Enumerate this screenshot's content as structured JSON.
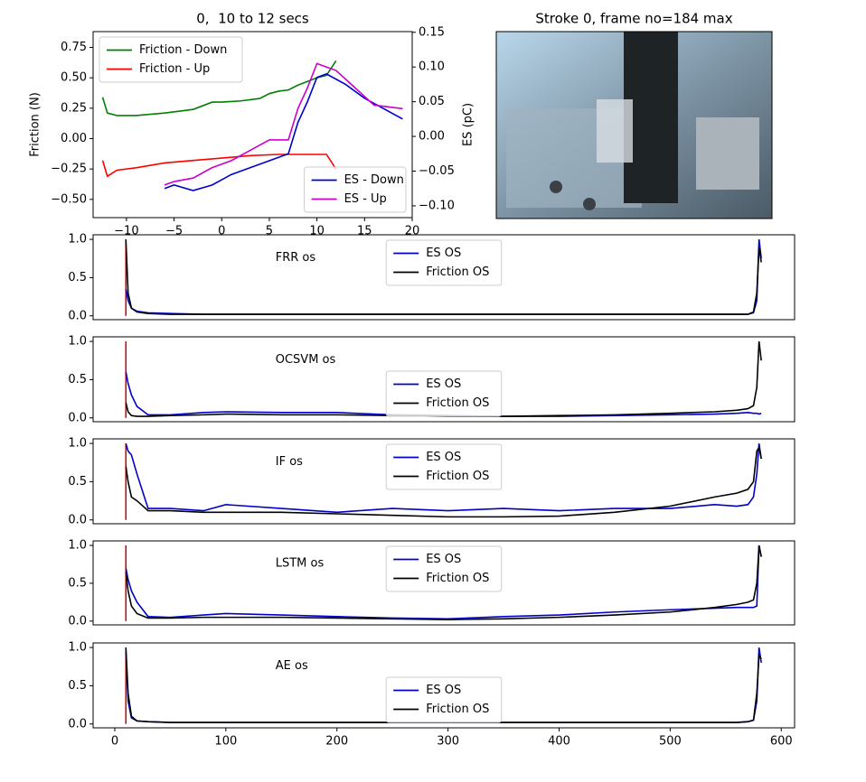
{
  "chart_data": [
    {
      "type": "line",
      "title": "0,  10 to 12 secs",
      "ylabel": "Friction (N)",
      "y2label": "ES (pC)",
      "xlim": [
        -13.5,
        20
      ],
      "xticks": [
        {
          "value": -10,
          "label": "−10"
        },
        {
          "value": -5,
          "label": "−5"
        },
        0,
        5,
        10,
        15,
        20
      ],
      "ylim": [
        -0.65,
        0.88
      ],
      "yticks": [
        {
          "value": -0.5,
          "label": "−0.50"
        },
        {
          "value": -0.25,
          "label": "−0.25"
        },
        {
          "value": 0,
          "label": "0.00"
        },
        0.25,
        {
          "value": 0.5,
          "label": "0.50"
        },
        0.75
      ],
      "y2lim": [
        -0.117,
        0.151
      ],
      "y2ticks": [
        {
          "value": -0.1,
          "label": "−0.10"
        },
        {
          "value": -0.05,
          "label": "−0.05"
        },
        {
          "value": 0,
          "label": "0.00"
        },
        0.05,
        {
          "value": 0.1,
          "label": "0.10"
        },
        0.15
      ],
      "legend": "upper left",
      "y2_legend": "lower right",
      "series": [
        {
          "name": "Friction - Down",
          "color": "#008000",
          "x": [
            -12.5,
            -12,
            -11,
            -9,
            -6,
            -3,
            -1,
            0,
            2,
            4,
            5,
            6,
            7,
            8,
            9,
            10,
            11,
            12
          ],
          "values": [
            0.34,
            0.21,
            0.19,
            0.19,
            0.21,
            0.24,
            0.3,
            0.3,
            0.31,
            0.33,
            0.37,
            0.39,
            0.4,
            0.44,
            0.47,
            0.5,
            0.52,
            0.64
          ]
        },
        {
          "name": "Friction - Up",
          "color": "#ff0000",
          "x": [
            -12.5,
            -12,
            -11,
            -9,
            -6,
            -3,
            0,
            3,
            6,
            9,
            11,
            12
          ],
          "values": [
            -0.18,
            -0.31,
            -0.26,
            -0.24,
            -0.2,
            -0.18,
            -0.16,
            -0.14,
            -0.13,
            -0.13,
            -0.13,
            -0.25
          ]
        },
        {
          "name": "ES - Down",
          "color": "#0000cc",
          "axis": "y2",
          "x": [
            -6,
            -5,
            -3,
            -1,
            1,
            3,
            5,
            6,
            7,
            8,
            9,
            10,
            11,
            13,
            15,
            17,
            19
          ],
          "values": [
            -0.075,
            -0.07,
            -0.078,
            -0.07,
            -0.055,
            -0.045,
            -0.035,
            -0.03,
            -0.025,
            0.02,
            0.05,
            0.085,
            0.09,
            0.075,
            0.055,
            0.04,
            0.025
          ]
        },
        {
          "name": "ES - Up",
          "color": "#cc00cc",
          "axis": "y2",
          "x": [
            -6,
            -5,
            -3,
            -1,
            1,
            3,
            5,
            7,
            8,
            9,
            10,
            11,
            12,
            14,
            16,
            19
          ],
          "values": [
            -0.07,
            -0.065,
            -0.06,
            -0.045,
            -0.035,
            -0.02,
            -0.005,
            -0.005,
            0.04,
            0.07,
            0.105,
            0.1,
            0.095,
            0.07,
            0.045,
            0.04
          ]
        }
      ]
    },
    {
      "type": "image",
      "title": "Stroke 0, frame no=184 max"
    },
    {
      "type": "line",
      "annotation": "FRR os",
      "xlim": [
        -19.5,
        612
      ],
      "ylim": [
        -0.05,
        1.06
      ],
      "yticks": [
        {
          "value": 0,
          "label": "0.0"
        },
        0.5,
        {
          "value": 1,
          "label": "1.0"
        }
      ],
      "legend": "upper center",
      "vline": {
        "x": 10,
        "y": [
          0,
          1
        ],
        "color": "#cc0000"
      },
      "x": [
        10,
        12,
        15,
        20,
        30,
        50,
        80,
        100,
        150,
        200,
        250,
        300,
        350,
        400,
        450,
        500,
        540,
        560,
        570,
        575,
        578,
        580,
        582
      ],
      "series": [
        {
          "name": "ES OS",
          "color": "#0000cc",
          "values": [
            0.35,
            0.2,
            0.1,
            0.06,
            0.04,
            0.03,
            0.02,
            0.02,
            0.02,
            0.02,
            0.02,
            0.02,
            0.02,
            0.02,
            0.02,
            0.02,
            0.02,
            0.02,
            0.02,
            0.04,
            0.2,
            1.0,
            0.75
          ]
        },
        {
          "name": "Friction OS",
          "color": "#000000",
          "values": [
            1.0,
            0.3,
            0.1,
            0.05,
            0.03,
            0.02,
            0.02,
            0.02,
            0.02,
            0.02,
            0.02,
            0.02,
            0.02,
            0.02,
            0.02,
            0.02,
            0.02,
            0.02,
            0.02,
            0.05,
            0.3,
            0.9,
            0.7
          ]
        }
      ]
    },
    {
      "type": "line",
      "annotation": "OCSVM os",
      "xlim": [
        -19.5,
        612
      ],
      "ylim": [
        -0.05,
        1.06
      ],
      "yticks": [
        {
          "value": 0,
          "label": "0.0"
        },
        0.5,
        {
          "value": 1,
          "label": "1.0"
        }
      ],
      "legend": "lower center",
      "vline": {
        "x": 10,
        "y": [
          0,
          1
        ],
        "color": "#cc0000"
      },
      "x": [
        10,
        12,
        15,
        20,
        30,
        50,
        80,
        100,
        150,
        200,
        250,
        300,
        350,
        400,
        450,
        500,
        540,
        560,
        570,
        575,
        578,
        580,
        582
      ],
      "series": [
        {
          "name": "ES OS",
          "color": "#0000cc",
          "values": [
            0.6,
            0.45,
            0.3,
            0.15,
            0.04,
            0.04,
            0.07,
            0.08,
            0.07,
            0.07,
            0.04,
            0.03,
            0.02,
            0.02,
            0.03,
            0.04,
            0.05,
            0.06,
            0.07,
            0.06,
            0.06,
            0.05,
            0.06
          ]
        },
        {
          "name": "Friction OS",
          "color": "#000000",
          "values": [
            0.2,
            0.08,
            0.03,
            0.02,
            0.02,
            0.03,
            0.04,
            0.05,
            0.04,
            0.04,
            0.03,
            0.02,
            0.02,
            0.03,
            0.04,
            0.06,
            0.08,
            0.1,
            0.12,
            0.16,
            0.4,
            1.0,
            0.75
          ]
        }
      ]
    },
    {
      "type": "line",
      "annotation": "IF os",
      "xlim": [
        -19.5,
        612
      ],
      "ylim": [
        -0.05,
        1.06
      ],
      "yticks": [
        {
          "value": 0,
          "label": "0.0"
        },
        0.5,
        {
          "value": 1,
          "label": "1.0"
        }
      ],
      "legend": "upper center",
      "vline": {
        "x": 10,
        "y": [
          0,
          1
        ],
        "color": "#cc0000"
      },
      "x": [
        10,
        12,
        15,
        20,
        30,
        50,
        80,
        100,
        150,
        200,
        250,
        300,
        350,
        400,
        450,
        500,
        540,
        560,
        570,
        575,
        578,
        580,
        582
      ],
      "series": [
        {
          "name": "ES OS",
          "color": "#0000cc",
          "values": [
            1.0,
            0.9,
            0.85,
            0.6,
            0.15,
            0.15,
            0.12,
            0.2,
            0.15,
            0.1,
            0.15,
            0.12,
            0.15,
            0.12,
            0.15,
            0.15,
            0.2,
            0.18,
            0.2,
            0.3,
            0.6,
            1.0,
            0.8
          ]
        },
        {
          "name": "Friction OS",
          "color": "#000000",
          "values": [
            0.7,
            0.5,
            0.3,
            0.25,
            0.12,
            0.12,
            0.1,
            0.1,
            0.1,
            0.08,
            0.06,
            0.04,
            0.04,
            0.05,
            0.1,
            0.18,
            0.3,
            0.35,
            0.4,
            0.5,
            0.9,
            0.95,
            0.8
          ]
        }
      ]
    },
    {
      "type": "line",
      "annotation": "LSTM os",
      "xlim": [
        -19.5,
        612
      ],
      "ylim": [
        -0.05,
        1.06
      ],
      "yticks": [
        {
          "value": 0,
          "label": "0.0"
        },
        0.5,
        {
          "value": 1,
          "label": "1.0"
        }
      ],
      "legend": "upper center",
      "vline": {
        "x": 10,
        "y": [
          0,
          1
        ],
        "color": "#cc0000"
      },
      "x": [
        10,
        12,
        15,
        20,
        30,
        50,
        80,
        100,
        150,
        200,
        250,
        300,
        350,
        400,
        450,
        500,
        540,
        560,
        570,
        575,
        578,
        580,
        582
      ],
      "series": [
        {
          "name": "ES OS",
          "color": "#0000cc",
          "values": [
            0.7,
            0.55,
            0.4,
            0.25,
            0.06,
            0.05,
            0.08,
            0.1,
            0.08,
            0.06,
            0.04,
            0.03,
            0.06,
            0.08,
            0.12,
            0.15,
            0.17,
            0.18,
            0.18,
            0.18,
            0.2,
            1.0,
            0.85
          ]
        },
        {
          "name": "Friction OS",
          "color": "#000000",
          "values": [
            0.65,
            0.4,
            0.2,
            0.1,
            0.04,
            0.04,
            0.05,
            0.05,
            0.05,
            0.04,
            0.03,
            0.02,
            0.03,
            0.05,
            0.08,
            0.12,
            0.18,
            0.22,
            0.25,
            0.28,
            0.5,
            1.0,
            0.85
          ]
        }
      ]
    },
    {
      "type": "line",
      "annotation": "AE os",
      "xlim": [
        -19.5,
        612
      ],
      "xticks": [
        0,
        100,
        200,
        300,
        400,
        500,
        600
      ],
      "ylim": [
        -0.05,
        1.06
      ],
      "yticks": [
        {
          "value": 0,
          "label": "0.0"
        },
        0.5,
        {
          "value": 1,
          "label": "1.0"
        }
      ],
      "legend": "lower center",
      "vline": {
        "x": 10,
        "y": [
          0,
          1
        ],
        "color": "#cc0000"
      },
      "x": [
        10,
        12,
        15,
        20,
        30,
        50,
        80,
        100,
        150,
        200,
        250,
        300,
        350,
        400,
        450,
        500,
        540,
        560,
        570,
        575,
        578,
        580,
        582
      ],
      "series": [
        {
          "name": "ES OS",
          "color": "#0000cc",
          "values": [
            0.95,
            0.3,
            0.08,
            0.04,
            0.03,
            0.02,
            0.02,
            0.02,
            0.02,
            0.02,
            0.02,
            0.02,
            0.02,
            0.02,
            0.02,
            0.02,
            0.02,
            0.02,
            0.03,
            0.05,
            0.3,
            1.0,
            0.8
          ]
        },
        {
          "name": "Friction OS",
          "color": "#000000",
          "values": [
            1.0,
            0.4,
            0.1,
            0.04,
            0.03,
            0.02,
            0.02,
            0.02,
            0.02,
            0.02,
            0.02,
            0.02,
            0.02,
            0.02,
            0.02,
            0.02,
            0.02,
            0.02,
            0.03,
            0.05,
            0.4,
            0.9,
            0.85
          ]
        }
      ]
    }
  ]
}
